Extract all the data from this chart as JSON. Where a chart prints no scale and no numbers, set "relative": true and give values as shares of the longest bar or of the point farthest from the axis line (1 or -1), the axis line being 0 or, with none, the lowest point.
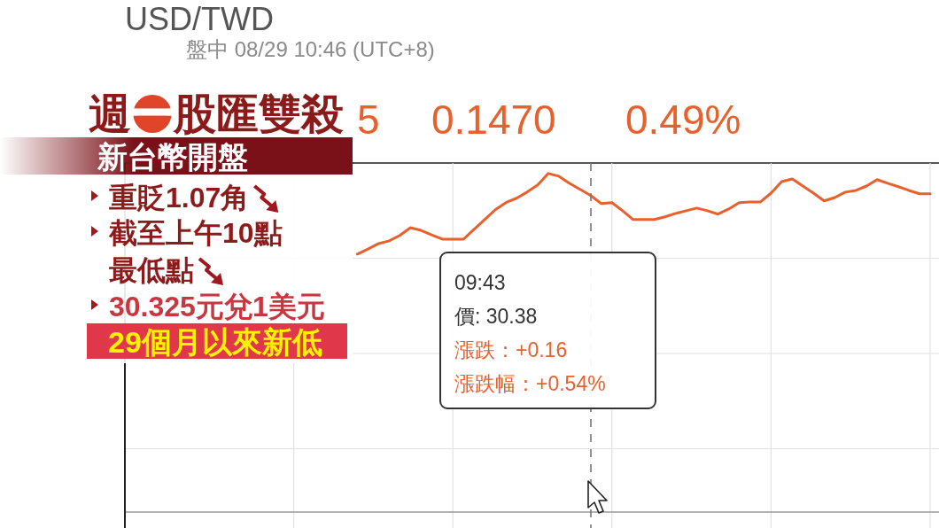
{
  "chart_data": {
    "type": "line",
    "title": "USD/TWD",
    "subtitle": "盤中 08/29 10:46 (UTC+8)",
    "categories": [
      null,
      null,
      null,
      null,
      null,
      null,
      null,
      null,
      null,
      null,
      null,
      null,
      null,
      null,
      null,
      null,
      null,
      null,
      null,
      null,
      null,
      null,
      null,
      null,
      null,
      null,
      null,
      null,
      null,
      null,
      null,
      null,
      null,
      null,
      null,
      null,
      null,
      null,
      null,
      null,
      null,
      null,
      null,
      null,
      null,
      null,
      null,
      null,
      null,
      null,
      null,
      null,
      null,
      null,
      null,
      null,
      null,
      null,
      null,
      null,
      null,
      null,
      null,
      null,
      null,
      null,
      null,
      null,
      null,
      null,
      null,
      null,
      null,
      null,
      null,
      null
    ],
    "series": [
      {
        "color": "#e8602c",
        "values": [
          null,
          null,
          null,
          null,
          null,
          null,
          null,
          null,
          null,
          null,
          null,
          null,
          null,
          null,
          null,
          null,
          null,
          null,
          null,
          null,
          null,
          0.762,
          0.777,
          0.793,
          0.801,
          0.817,
          0.84,
          0.832,
          0.819,
          0.806,
          0.806,
          0.806,
          0.835,
          0.864,
          0.893,
          0.914,
          0.927,
          0.945,
          0.966,
          1,
          0.992,
          0.971,
          0.953,
          0.935,
          0.911,
          0.914,
          0.89,
          0.864,
          0.864,
          0.864,
          0.872,
          0.882,
          0.89,
          0.898,
          0.89,
          0.88,
          0.895,
          0.914,
          0.916,
          0.916,
          0.942,
          0.976,
          0.984,
          0.963,
          0.942,
          0.919,
          0.929,
          0.945,
          0.95,
          0.963,
          0.982,
          0.971,
          0.961,
          0.95,
          0.94,
          0.94
        ]
      }
    ],
    "relative": true,
    "grid": true,
    "annotations": [
      "5",
      "0.1470",
      "0.49%",
      "週一股匯雙殺",
      "新台幣開盤",
      "重貶1.07角",
      "截至上午10點",
      "最低點",
      "30.325元兌1美元",
      "29個月以來新低",
      "09:43\n價: 30.38\n漲跌：+0.16\n漲跌幅：+0.54%"
    ]
  }
}
